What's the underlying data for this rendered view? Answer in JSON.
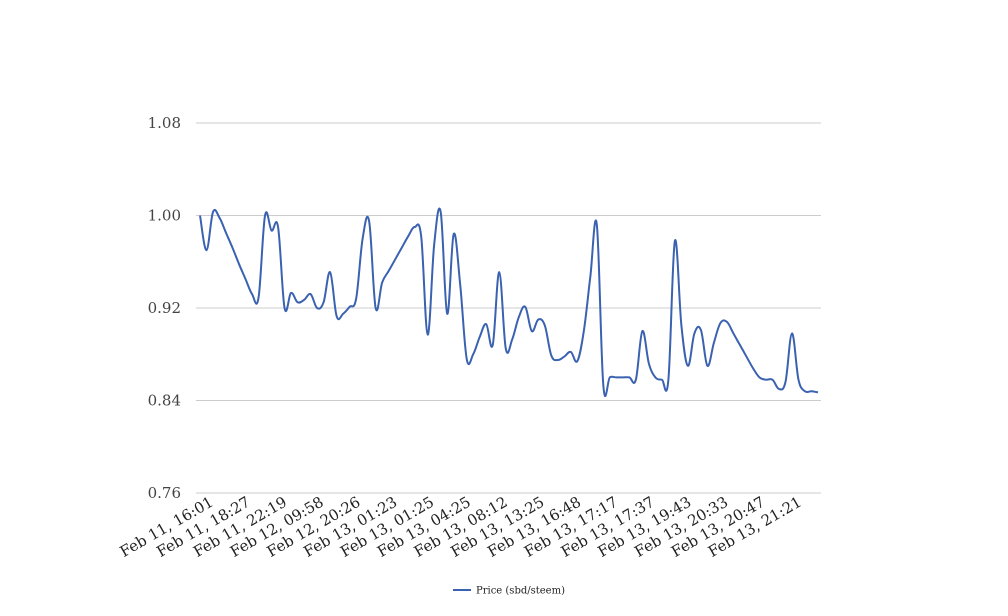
{
  "chart_data": {
    "type": "line",
    "title": "",
    "xlabel": "",
    "ylabel": "",
    "ylim": [
      0.76,
      1.08
    ],
    "yticks": [
      "0.76",
      "0.84",
      "0.92",
      "1.00",
      "1.08"
    ],
    "grid": "horizontal",
    "legend_position": "bottom",
    "line_color": "#3a62b0",
    "xtick_labels": [
      "Feb 11, 16:01",
      "Feb 11, 18:27",
      "Feb 11, 22:19",
      "Feb 12, 09:58",
      "Feb 12, 20:26",
      "Feb 13, 01:23",
      "Feb 13, 01:25",
      "Feb 13, 04:25",
      "Feb 13, 08:12",
      "Feb 13, 13:25",
      "Feb 13, 16:48",
      "Feb 13, 17:17",
      "Feb 13, 17:37",
      "Feb 13, 19:43",
      "Feb 13, 20:33",
      "Feb 13, 20:47",
      "Feb 13, 21:21"
    ],
    "series": [
      {
        "name": "Price (sbd/steem)",
        "values": [
          1.0,
          0.97,
          1.003,
          0.998,
          0.985,
          0.972,
          0.958,
          0.945,
          0.932,
          0.929,
          1.0,
          0.987,
          0.99,
          0.92,
          0.933,
          0.925,
          0.927,
          0.932,
          0.92,
          0.925,
          0.951,
          0.913,
          0.915,
          0.921,
          0.928,
          0.98,
          0.995,
          0.92,
          0.942,
          0.952,
          0.962,
          0.972,
          0.982,
          0.99,
          0.982,
          0.897,
          0.975,
          1.003,
          0.915,
          0.984,
          0.94,
          0.876,
          0.88,
          0.895,
          0.906,
          0.888,
          0.951,
          0.885,
          0.893,
          0.912,
          0.921,
          0.9,
          0.91,
          0.905,
          0.879,
          0.875,
          0.878,
          0.882,
          0.874,
          0.9,
          0.947,
          0.992,
          0.853,
          0.86,
          0.86,
          0.86,
          0.86,
          0.858,
          0.9,
          0.872,
          0.86,
          0.858,
          0.858,
          0.978,
          0.905,
          0.87,
          0.898,
          0.901,
          0.87,
          0.89,
          0.907,
          0.908,
          0.898,
          0.888,
          0.878,
          0.868,
          0.86,
          0.858,
          0.858,
          0.85,
          0.856,
          0.898,
          0.858,
          0.848,
          0.848,
          0.847
        ]
      }
    ]
  }
}
